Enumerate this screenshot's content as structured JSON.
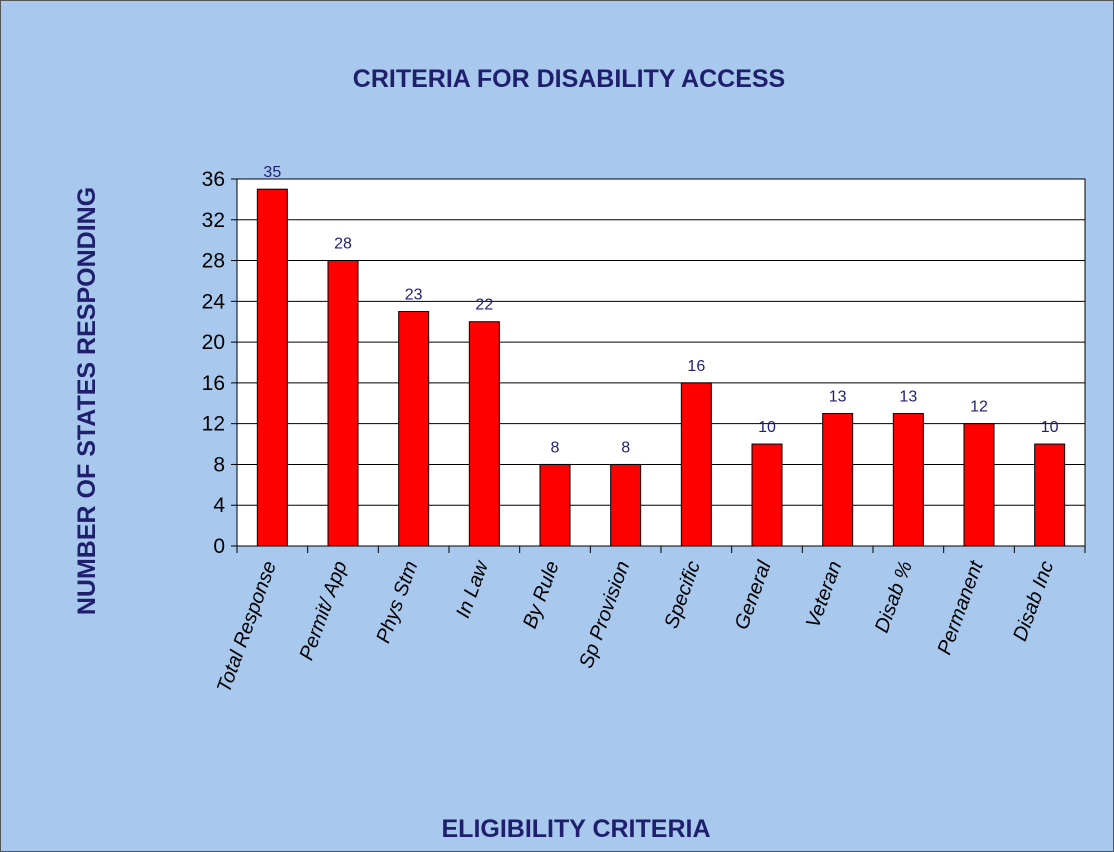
{
  "chart_data": {
    "type": "bar",
    "title": "CRITERIA FOR DISABILITY ACCESS",
    "xlabel": "ELIGIBILITY CRITERIA",
    "ylabel": "NUMBER OF STATES RESPONDING",
    "categories": [
      "Total Response",
      "Permit/ App",
      "Phys Stm",
      "In Law",
      "By Rule",
      "Sp Provision",
      "Specific",
      "General",
      "Veteran",
      "Disab %",
      "Permanent",
      "Disab Inc"
    ],
    "values": [
      35,
      28,
      23,
      22,
      8,
      8,
      16,
      10,
      13,
      13,
      12,
      10
    ],
    "ylim": [
      0,
      36
    ],
    "yticks": [
      0,
      4,
      8,
      12,
      16,
      20,
      24,
      28,
      32,
      36
    ],
    "grid": true,
    "legend": "none",
    "colors": {
      "bar": "#ff0000",
      "bar_border": "#000000",
      "background": "#a8c8ee",
      "plot_area": "#ffffff",
      "text": "#1f1f6e"
    }
  }
}
